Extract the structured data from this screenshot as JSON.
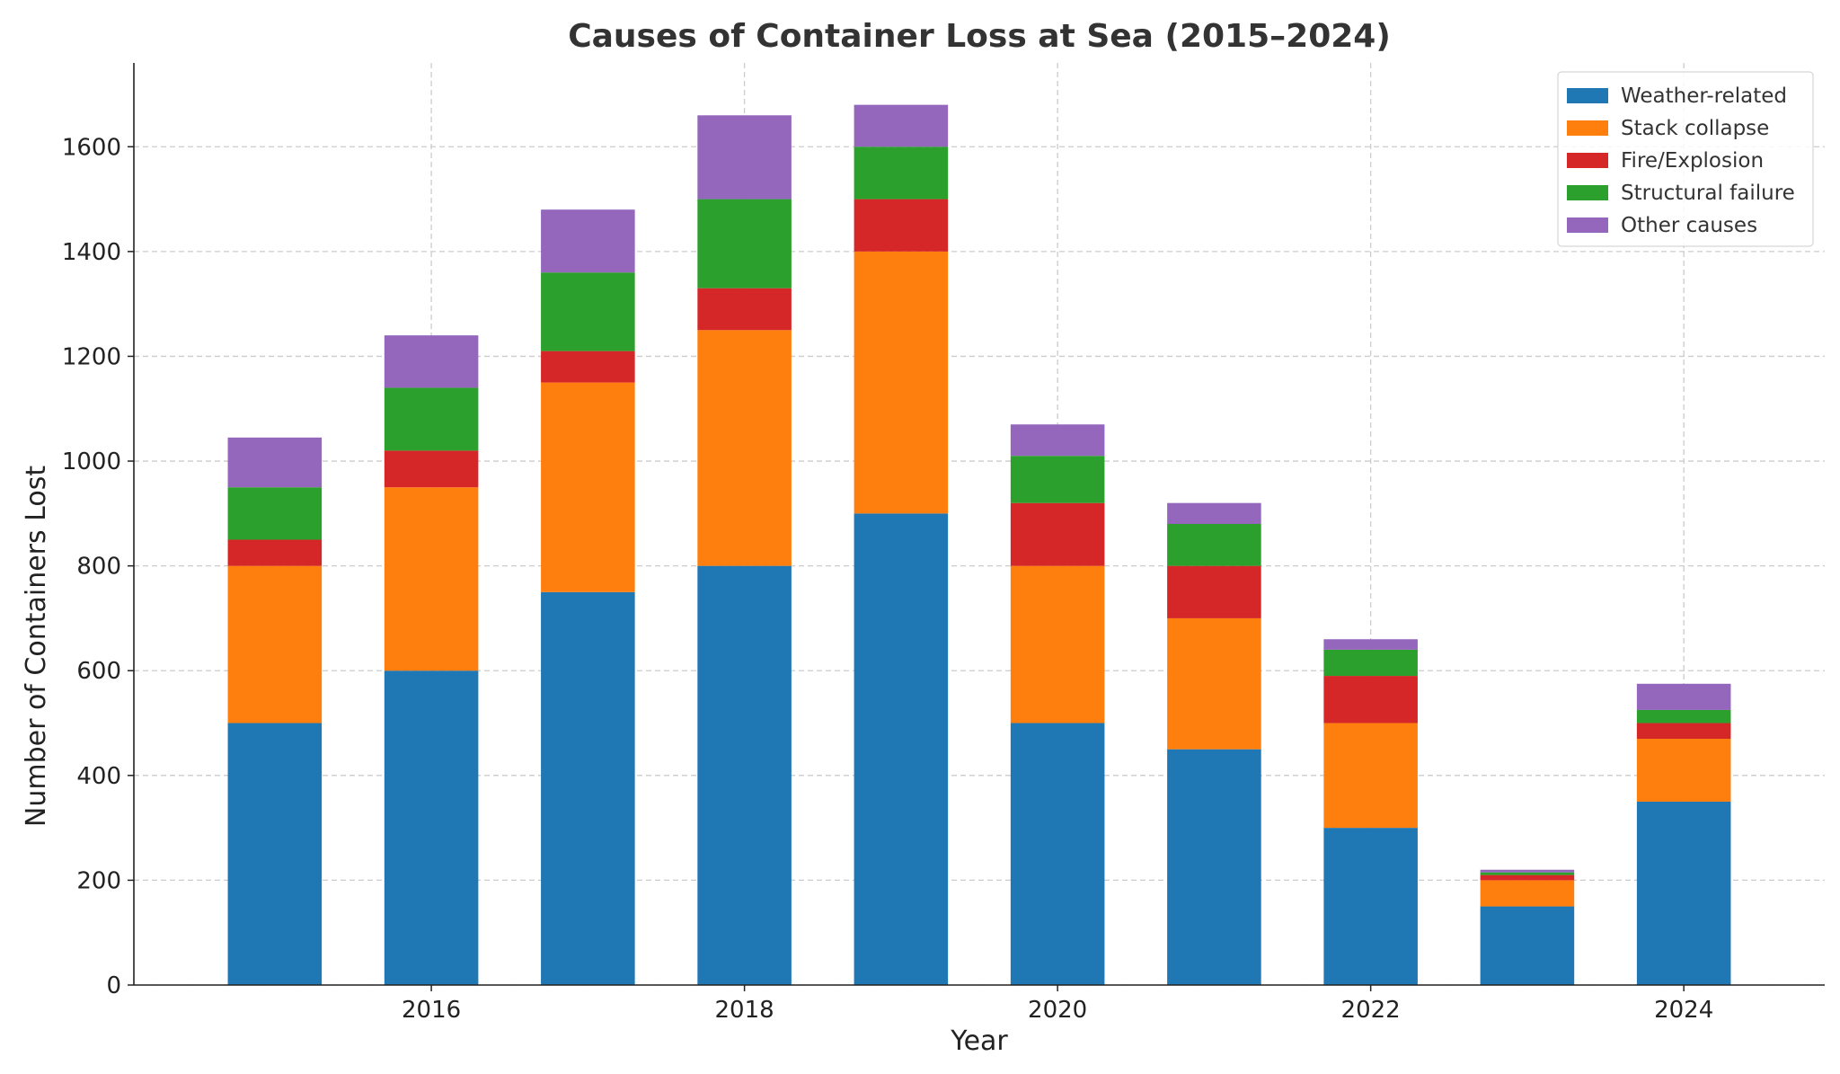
{
  "chart_data": {
    "type": "bar",
    "stacked": true,
    "title": "Causes of Container Loss at Sea (2015–2024)",
    "xlabel": "Year",
    "ylabel": "Number of Containers Lost",
    "categories": [
      2015,
      2016,
      2017,
      2018,
      2019,
      2020,
      2021,
      2022,
      2023,
      2024
    ],
    "x_ticks": [
      "2016",
      "2018",
      "2020",
      "2022",
      "2024"
    ],
    "y_ticks": [
      "0",
      "200",
      "400",
      "600",
      "800",
      "1000",
      "1200",
      "1400",
      "1600"
    ],
    "ylim": [
      0,
      1760
    ],
    "grid": true,
    "legend_position": "top-right",
    "series": [
      {
        "name": "Weather-related",
        "color": "#1f77b4",
        "values": [
          500,
          600,
          750,
          800,
          900,
          500,
          450,
          300,
          150,
          350
        ]
      },
      {
        "name": "Stack collapse",
        "color": "#ff7f0e",
        "values": [
          300,
          350,
          400,
          450,
          500,
          300,
          250,
          200,
          50,
          120
        ]
      },
      {
        "name": "Fire/Explosion",
        "color": "#d62728",
        "values": [
          50,
          70,
          60,
          80,
          100,
          120,
          100,
          90,
          10,
          30
        ]
      },
      {
        "name": "Structural failure",
        "color": "#2ca02c",
        "values": [
          100,
          120,
          150,
          170,
          100,
          90,
          80,
          50,
          5,
          25
        ]
      },
      {
        "name": "Other causes",
        "color": "#9467bd",
        "values": [
          95,
          100,
          120,
          160,
          80,
          60,
          40,
          20,
          5,
          50
        ]
      }
    ]
  }
}
